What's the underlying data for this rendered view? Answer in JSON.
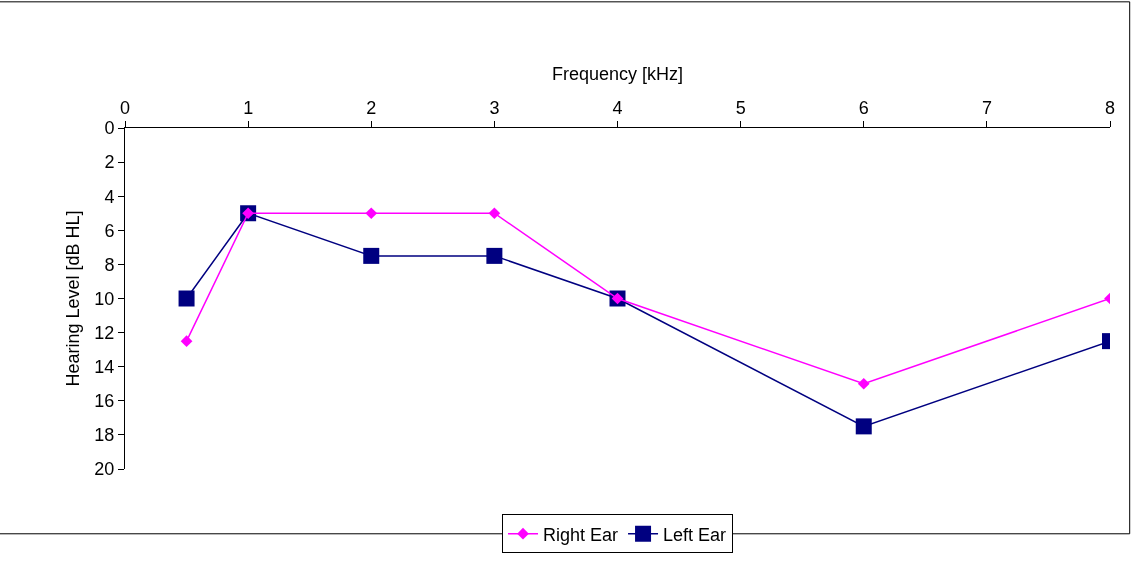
{
  "chart_data": {
    "type": "line",
    "xlabel": "Frequency [kHz]",
    "ylabel": "Hearing Level [dB HL]",
    "x": [
      0.5,
      1,
      2,
      3,
      4,
      6,
      8
    ],
    "xlim": [
      0,
      8
    ],
    "xticks": [
      0,
      1,
      2,
      3,
      4,
      5,
      6,
      7,
      8
    ],
    "ylim": [
      20,
      0
    ],
    "yticks": [
      0,
      2,
      4,
      6,
      8,
      10,
      12,
      14,
      16,
      18,
      20
    ],
    "grid": false,
    "legend": "bottom",
    "series": [
      {
        "name": "Right Ear",
        "color": "#ff00ff",
        "marker": "diamond",
        "values": [
          12.5,
          5,
          5,
          5,
          10,
          15,
          10
        ]
      },
      {
        "name": "Left Ear",
        "color": "#000080",
        "marker": "square",
        "values": [
          10,
          5,
          7.5,
          7.5,
          10,
          17.5,
          12.5
        ]
      }
    ]
  }
}
